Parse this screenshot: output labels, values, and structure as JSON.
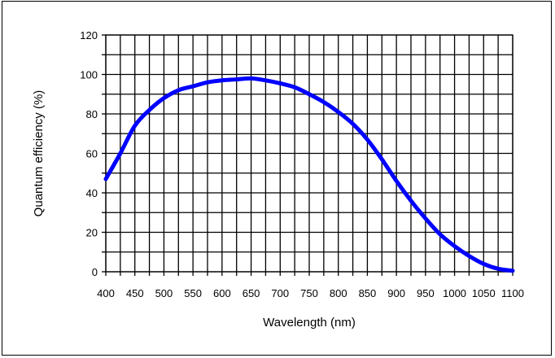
{
  "chart_data": {
    "type": "line",
    "title": "",
    "xlabel": "Wavelength (nm)",
    "ylabel": "Quantum efficiency (%)",
    "xlim": [
      400,
      1100
    ],
    "ylim": [
      0,
      120
    ],
    "x_ticks": [
      400,
      450,
      500,
      550,
      600,
      650,
      700,
      750,
      800,
      850,
      900,
      950,
      1000,
      1050,
      1100
    ],
    "y_ticks": [
      0,
      20,
      40,
      60,
      80,
      100,
      120
    ],
    "grid": true,
    "line_color": "#0000ff",
    "series": [
      {
        "x": [
          400,
          425,
          450,
          475,
          500,
          525,
          550,
          575,
          600,
          625,
          650,
          675,
          700,
          725,
          750,
          775,
          800,
          825,
          850,
          875,
          900,
          925,
          950,
          975,
          1000,
          1025,
          1050,
          1075,
          1100
        ],
        "values": [
          47,
          60,
          74,
          82,
          88,
          92,
          94,
          96,
          97,
          97.5,
          98,
          97,
          95.5,
          93.5,
          90,
          86,
          81,
          75,
          67,
          57,
          46,
          36,
          27,
          19,
          13,
          8,
          4,
          1.5,
          0.5
        ]
      }
    ]
  }
}
